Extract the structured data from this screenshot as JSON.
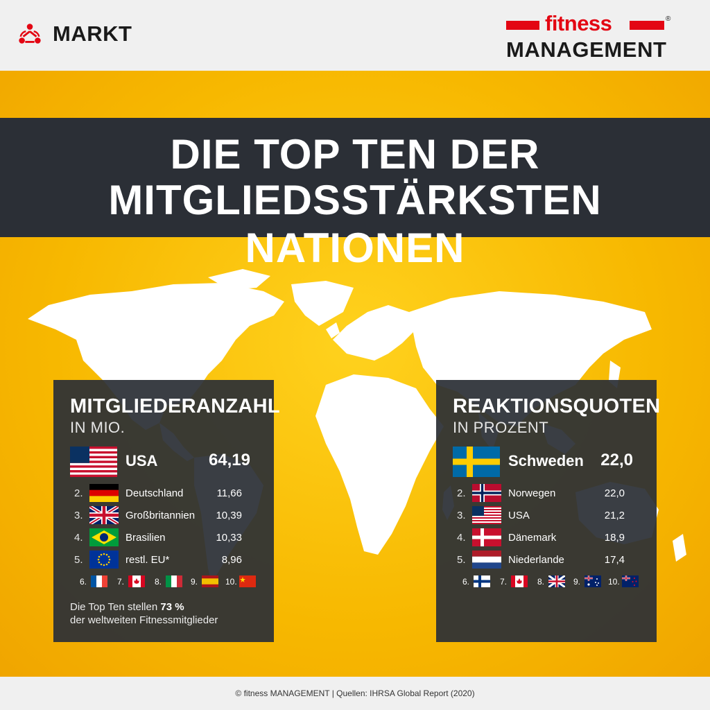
{
  "header": {
    "section_label": "MARKT",
    "section_icon": "network-people-icon",
    "brand_top": "fitness",
    "brand_bottom": "MANAGEMENT",
    "brand_reg": "®",
    "brand_color": "#e30613"
  },
  "banner": {
    "line1": "DIE TOP TEN DER",
    "line2": "MITGLIEDSSTÄRKSTEN NATIONEN"
  },
  "members_panel": {
    "title": "MITGLIEDERANZAHL",
    "subtitle": "IN MIO.",
    "top": {
      "flag": "usa-flag",
      "name": "USA",
      "value": "64,19"
    },
    "rows": [
      {
        "rank": "2.",
        "flag": "germany-flag",
        "name": "Deutschland",
        "value": "11,66"
      },
      {
        "rank": "3.",
        "flag": "uk-flag",
        "name": "Großbritannien",
        "value": "10,39"
      },
      {
        "rank": "4.",
        "flag": "brazil-flag",
        "name": "Brasilien",
        "value": "10,33"
      },
      {
        "rank": "5.",
        "flag": "eu-flag",
        "name": "restl. EU*",
        "value": "8,96"
      }
    ],
    "minor": [
      {
        "rank": "6.",
        "flag": "france-flag"
      },
      {
        "rank": "7.",
        "flag": "canada-flag"
      },
      {
        "rank": "8.",
        "flag": "italy-flag"
      },
      {
        "rank": "9.",
        "flag": "spain-flag"
      },
      {
        "rank": "10.",
        "flag": "china-flag"
      }
    ],
    "note_prefix": "Die Top Ten stellen ",
    "note_bold": "73 %",
    "note_suffix": "der weltweiten Fitnessmitglieder"
  },
  "rates_panel": {
    "title": "REAKTIONSQUOTEN",
    "subtitle": "IN PROZENT",
    "top": {
      "flag": "sweden-flag",
      "name": "Schweden",
      "value": "22,0"
    },
    "rows": [
      {
        "rank": "2.",
        "flag": "norway-flag",
        "name": "Norwegen",
        "value": "22,0"
      },
      {
        "rank": "3.",
        "flag": "usa-flag",
        "name": "USA",
        "value": "21,2"
      },
      {
        "rank": "4.",
        "flag": "denmark-flag",
        "name": "Dänemark",
        "value": "18,9"
      },
      {
        "rank": "5.",
        "flag": "netherlands-flag",
        "name": "Niederlande",
        "value": "17,4"
      }
    ],
    "minor": [
      {
        "rank": "6.",
        "flag": "finland-flag"
      },
      {
        "rank": "7.",
        "flag": "canada-flag"
      },
      {
        "rank": "8.",
        "flag": "uk-flag"
      },
      {
        "rank": "9.",
        "flag": "australia-flag"
      },
      {
        "rank": "10.",
        "flag": "new-zealand-flag"
      }
    ]
  },
  "footer": {
    "text": "© fitness MANAGEMENT  |  Quellen: IHRSA Global Report (2020)"
  },
  "colors": {
    "background_yellow": "#f7b800",
    "banner_dark": "#2b2f36",
    "panel_dark": "#2b2f36"
  }
}
